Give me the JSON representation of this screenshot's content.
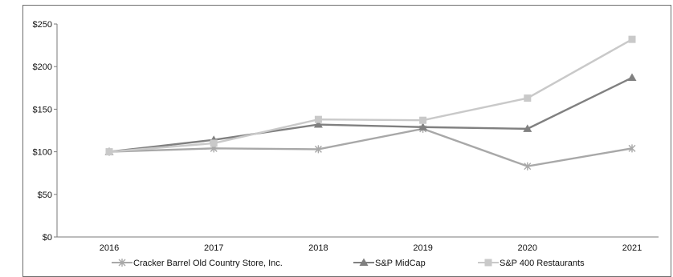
{
  "chart_data": {
    "type": "line",
    "x": [
      "2016",
      "2017",
      "2018",
      "2019",
      "2020",
      "2021"
    ],
    "yticks": [
      "$0",
      "$50",
      "$100",
      "$150",
      "$200",
      "$250"
    ],
    "ylim": [
      0,
      250
    ],
    "grid": false,
    "legend_position": "bottom",
    "series": [
      {
        "name": "Cracker Barrel Old Country Store, Inc.",
        "values": [
          100,
          104,
          103,
          127,
          83,
          104
        ],
        "color": "#a8a8a8",
        "marker": "asterisk"
      },
      {
        "name": "S&P MidCap",
        "values": [
          100,
          114,
          132,
          129,
          127,
          187
        ],
        "color": "#808080",
        "marker": "triangle"
      },
      {
        "name": "S&P 400 Restaurants",
        "values": [
          100,
          110,
          138,
          137,
          163,
          232
        ],
        "color": "#c9c9c9",
        "marker": "square"
      }
    ]
  }
}
